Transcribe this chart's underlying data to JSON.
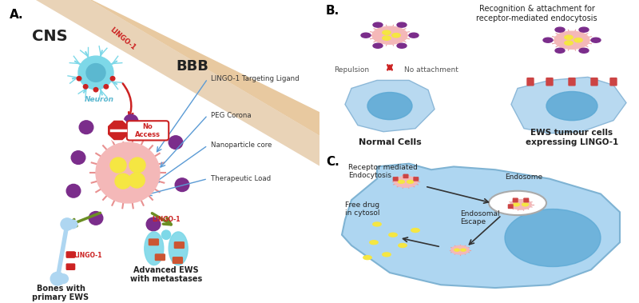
{
  "fig_width": 8.0,
  "fig_height": 3.79,
  "dpi": 100,
  "bg_color": "#ffffff",
  "panel_A": {
    "label": "A.",
    "CNS_text": "CNS",
    "BBB_text": "BBB",
    "LINGO1_text": "LINGO-1",
    "Neuron_text": "Neuron",
    "no_access_text": "No\nAccess",
    "annotations": [
      "LINGO-1 Targeting Ligand",
      "PEG Corona",
      "Nanoparticle core",
      "Therapeutic Load"
    ],
    "bones_text": "Bones with\nprimary EWS",
    "lung_text": "Advanced EWS\nwith metastases",
    "lingo1_color": "#cc0000",
    "arrow_color": "#6b8e23",
    "nanoparticle_color": "#f4b8b8",
    "core_color": "#f5e642",
    "satellite_color": "#7b2d8b",
    "BBB_color": "#e8c9a0",
    "neuron_color": "#7dd8e8",
    "annotation_arrow_color": "#5b9bd5"
  },
  "panel_B": {
    "label": "B.",
    "title_text": "Recognition & attachment for\nreceptor-mediated endocytosis",
    "repulsion_text": "Repulsion",
    "no_attach_text": "No attachment",
    "normal_cells_text": "Normal Cells",
    "EWS_text": "EWS tumour cells\nexpressing LINGO-1",
    "cell_color": "#b8d9f0",
    "nucleus_color": "#5ba8d4"
  },
  "panel_C": {
    "label": "C.",
    "receptor_text": "Receptor mediated\nEndocytosis",
    "endosome_text": "Endosome",
    "free_drug_text": "Free drug\nin cytosol",
    "endosomal_escape_text": "Endosomal\nEscape",
    "cell_color": "#aed6f1",
    "nucleus_color": "#5dade2"
  }
}
